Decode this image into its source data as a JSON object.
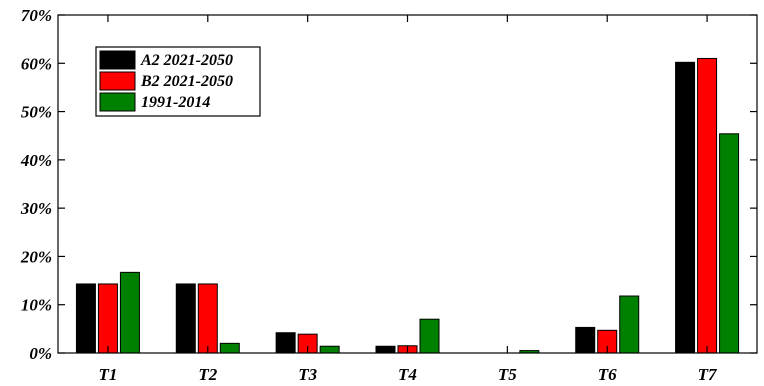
{
  "chart_data": {
    "type": "bar",
    "categories": [
      "T1",
      "T2",
      "T3",
      "T4",
      "T5",
      "T6",
      "T7"
    ],
    "series": [
      {
        "name": "A2 2021-2050",
        "color": "#000000",
        "values": [
          14.3,
          14.3,
          4.2,
          1.4,
          0.0,
          5.3,
          60.2
        ]
      },
      {
        "name": "B2 2021-2050",
        "color": "#ff0000",
        "values": [
          14.3,
          14.3,
          3.9,
          1.5,
          0.0,
          4.7,
          61.0
        ]
      },
      {
        "name": "1991-2014",
        "color": "#008000",
        "values": [
          16.7,
          2.0,
          1.4,
          7.0,
          0.5,
          11.8,
          45.4
        ]
      }
    ],
    "yticks": [
      "0%",
      "10%",
      "20%",
      "30%",
      "40%",
      "50%",
      "60%",
      "70%"
    ],
    "ylim": [
      0,
      70
    ],
    "legend_position": "top-left",
    "grid": false
  }
}
